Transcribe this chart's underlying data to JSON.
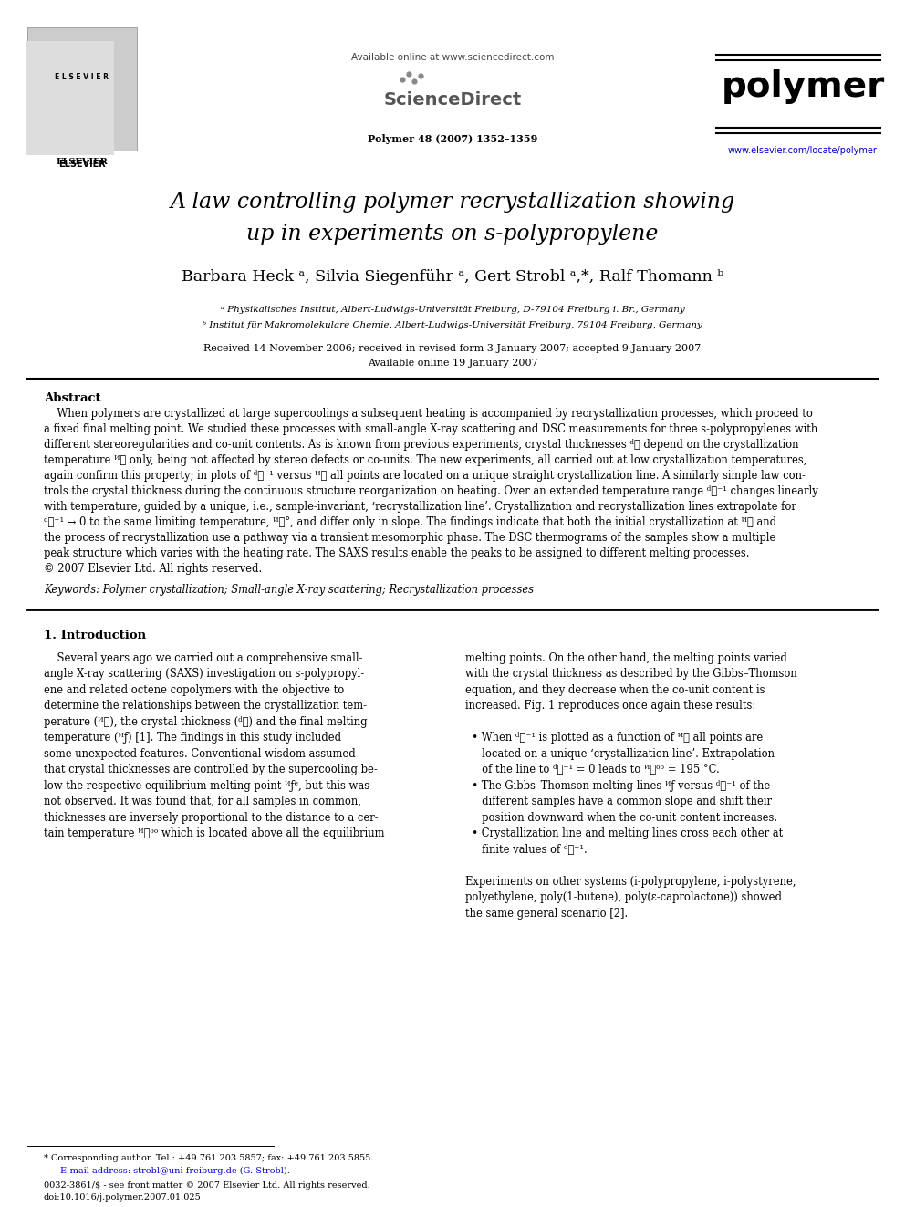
{
  "bg_color": "#ffffff",
  "page_width": 9.92,
  "page_height": 13.23,
  "header_available_online": "Available online at www.sciencedirect.com",
  "header_journal_ref": "Polymer 48 (2007) 1352–1359",
  "journal_name": "polymer",
  "journal_url": "www.elsevier.com/locate/polymer",
  "title_line1": "A law controlling polymer recrystallization showing",
  "title_line2": "up in experiments on s-polypropylene",
  "authors": "Barbara Heck ᵃ, Silvia Siegenführ ᵃ, Gert Strobl ᵃ,*, Ralf Thomann ᵇ",
  "affil_a": "ᵃ Physikalisches Institut, Albert-Ludwigs-Universität Freiburg, D-79104 Freiburg i. Br., Germany",
  "affil_b": "ᵇ Institut für Makromolekulare Chemie, Albert-Ludwigs-Universität Freiburg, 79104 Freiburg, Germany",
  "received": "Received 14 November 2006; received in revised form 3 January 2007; accepted 9 January 2007",
  "available": "Available online 19 January 2007",
  "abstract_title": "Abstract",
  "abstract_text": "When polymers are crystallized at large supercoolings a subsequent heating is accompanied by recrystallization processes, which proceed to a fixed final melting point. We studied these processes with small-angle X-ray scattering and DSC measurements for three s-polypropylenes with different stereoregularities and co-unit contents. As is known from previous experiments, crystal thicknesses ᵈⲜ depend on the crystallization temperature ᴻⲜ only, being not affected by stereo defects or co-units. The new experiments, all carried out at low crystallization temperatures, again confirm this property; in plots of ᵈⲜ⁻¹ versus ᴻⲜ all points are located on a unique straight crystallization line. A similarly simple law controls the crystal thickness during the continuous structure reorganization on heating. Over an extended temperature range ᵈⲜ⁻¹ changes linearly with temperature, guided by a unique, i.e., sample-invariant, ‘recrystallization line’. Crystallization and recrystallization lines extrapolate for ᵈⲜ⁻¹ → 0 to the same limiting temperature, ᴻⲜ°, and differ only in slope. The findings indicate that both the initial crystallization at ᴻⲜ and the process of recrystallization use a pathway via a transient mesomorphic phase. The DSC thermograms of the samples show a multiple peak structure which varies with the heating rate. The SAXS results enable the peaks to be assigned to different melting processes.\n© 2007 Elsevier Ltd. All rights reserved.",
  "keywords": "Keywords: Polymer crystallization; Small-angle X-ray scattering; Recrystallization processes",
  "intro_title": "1. Introduction",
  "intro_col1": "Several years ago we carried out a comprehensive small-angle X-ray scattering (SAXS) investigation on s-polypropylene and related octene copolymers with the objective to determine the relationships between the crystallization temperature (ᴻⲜ), the crystal thickness (ᵈⲜ) and the final melting temperature (ᴻƒ) [1]. The findings in this study included some unexpected features. Conventional wisdom assumed that crystal thicknesses are controlled by the supercooling below the respective equilibrium melting point ᴻƒᵉ, but this was not observed. It was found that, for all samples in common, thicknesses are inversely proportional to the distance to a certain temperature ᴻⲜᵒᵒ which is located above all the equilibrium",
  "intro_col2": "melting points. On the other hand, the melting points varied with the crystal thickness as described by the Gibbs–Thomson equation, and they decrease when the co-unit content is increased. Fig. 1 reproduces once again these results:\n\n• When ᵈⲜ⁻¹ is plotted as a function of ᴻⲜ all points are located on a unique ‘crystallization line’. Extrapolation of the line to ᵈⲜ⁻¹ = 0 leads to ᴻⲜᵒᵒ = 195 °C.\n• The Gibbs–Thomson melting lines ᴻƒ versus ᵈⲜ⁻¹ of the different samples have a common slope and shift their position downward when the co-unit content increases.\n• Crystallization line and melting lines cross each other at finite values of ᵈⲜ⁻¹.\n\nExperiments on other systems (i-polypropylene, i-polystyrene, polyethylene, poly(1-butene), poly(ε-caprolactone)) showed the same general scenario [2].",
  "footnote_corresponding": "* Corresponding author. Tel.: +49 761 203 5857; fax: +49 761 203 5855.\n   E-mail address: strobl@uni-freiburg.de (G. Strobl).",
  "footnote_issn": "0032-3861/$ - see front matter © 2007 Elsevier Ltd. All rights reserved.\ndoi:10.1016/j.polymer.2007.01.025"
}
